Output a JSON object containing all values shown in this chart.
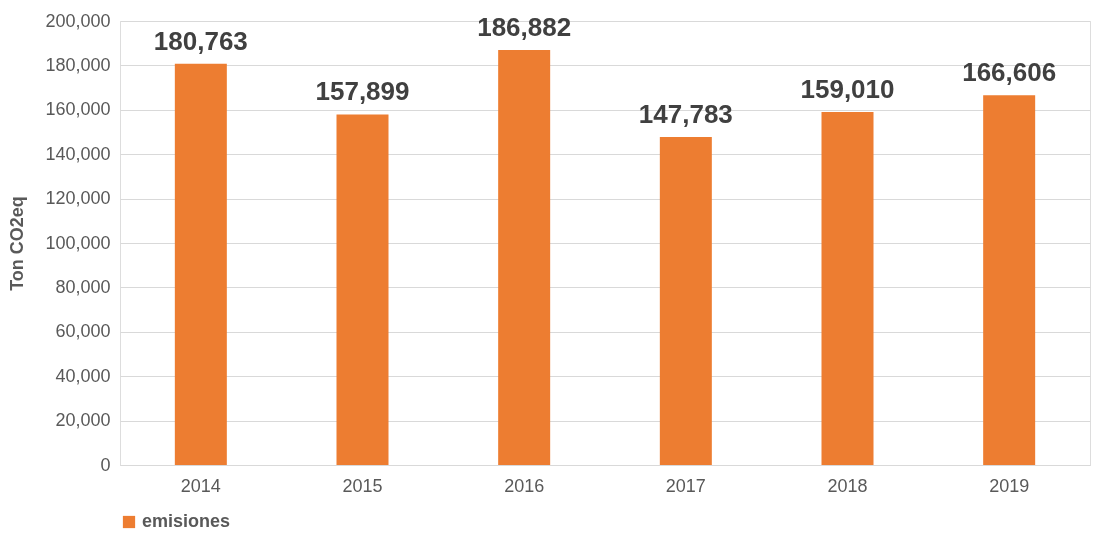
{
  "chart_data": {
    "type": "bar",
    "ylabel": "Ton CO2eq",
    "categories": [
      "2014",
      "2015",
      "2016",
      "2017",
      "2018",
      "2019"
    ],
    "series": [
      {
        "name": "emisiones",
        "color": "#ed7d31",
        "values": [
          180763,
          157899,
          186882,
          147783,
          159010,
          166606
        ],
        "value_labels": [
          "180,763",
          "157,899",
          "186,882",
          "147,783",
          "159,010",
          "166,606"
        ]
      }
    ],
    "ylim": [
      0,
      200000
    ],
    "yticks": [
      0,
      {
        "value": 20000,
        "label": "20,000"
      },
      {
        "value": 40000,
        "label": "40,000"
      },
      {
        "value": 60000,
        "label": "60,000"
      },
      {
        "value": 80000,
        "label": "80,000"
      },
      {
        "value": 100000,
        "label": "100,000"
      },
      {
        "value": 120000,
        "label": "120,000"
      },
      {
        "value": 140000,
        "label": "140,000"
      },
      {
        "value": 160000,
        "label": "160,000"
      },
      {
        "value": 180000,
        "label": "180,000"
      },
      {
        "value": 200000,
        "label": "200,000"
      }
    ],
    "grid": "y",
    "legend": "bottom"
  }
}
